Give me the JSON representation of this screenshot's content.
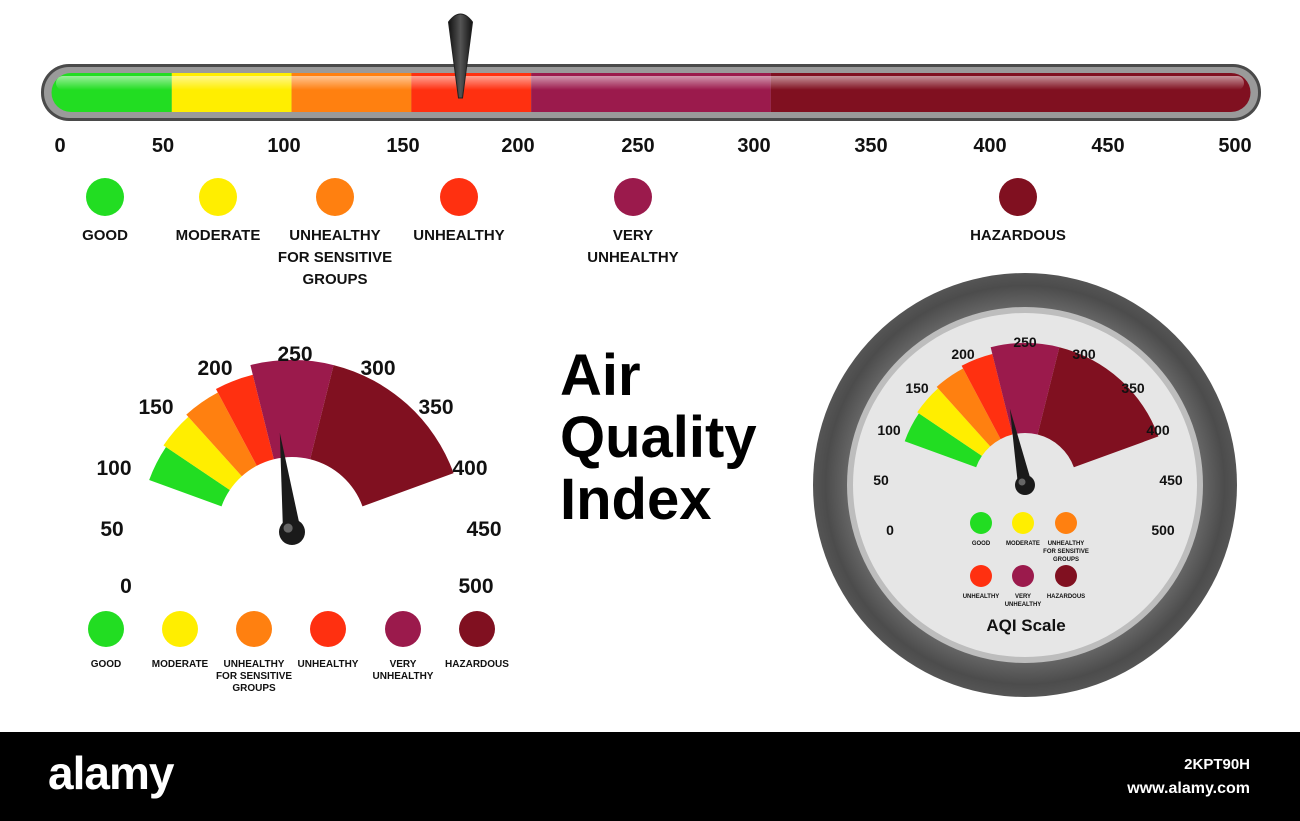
{
  "range": [
    0,
    500
  ],
  "categories": [
    {
      "label": [
        "GOOD"
      ],
      "min": 0,
      "max": 50,
      "color": "#22dd22"
    },
    {
      "label": [
        "MODERATE"
      ],
      "min": 50,
      "max": 100,
      "color": "#ffee00"
    },
    {
      "label": [
        "UNHEALTHY",
        "FOR SENSITIVE",
        "GROUPS"
      ],
      "min": 100,
      "max": 150,
      "color": "#ff8010"
    },
    {
      "label": [
        "UNHEALTHY"
      ],
      "min": 150,
      "max": 200,
      "color": "#ff3010"
    },
    {
      "label": [
        "VERY",
        "UNHEALTHY"
      ],
      "min": 200,
      "max": 300,
      "color": "#9b1a4c"
    },
    {
      "label": [
        "HAZARDOUS"
      ],
      "min": 300,
      "max": 500,
      "color": "#801020"
    }
  ],
  "ticks": [
    "0",
    "50",
    "100",
    "150",
    "200",
    "250",
    "300",
    "350",
    "400",
    "450",
    "500"
  ],
  "title_lines": [
    "Air",
    "Quality",
    "Index"
  ],
  "gauge_caption": "AQI Scale",
  "linear_pointer_value": 175,
  "semi_gauge_needle_value": 225,
  "round_gauge_needle_value": 210,
  "footer": {
    "brand": "alamy",
    "image_code": "2KPT90H",
    "site": "www.alamy.com"
  }
}
